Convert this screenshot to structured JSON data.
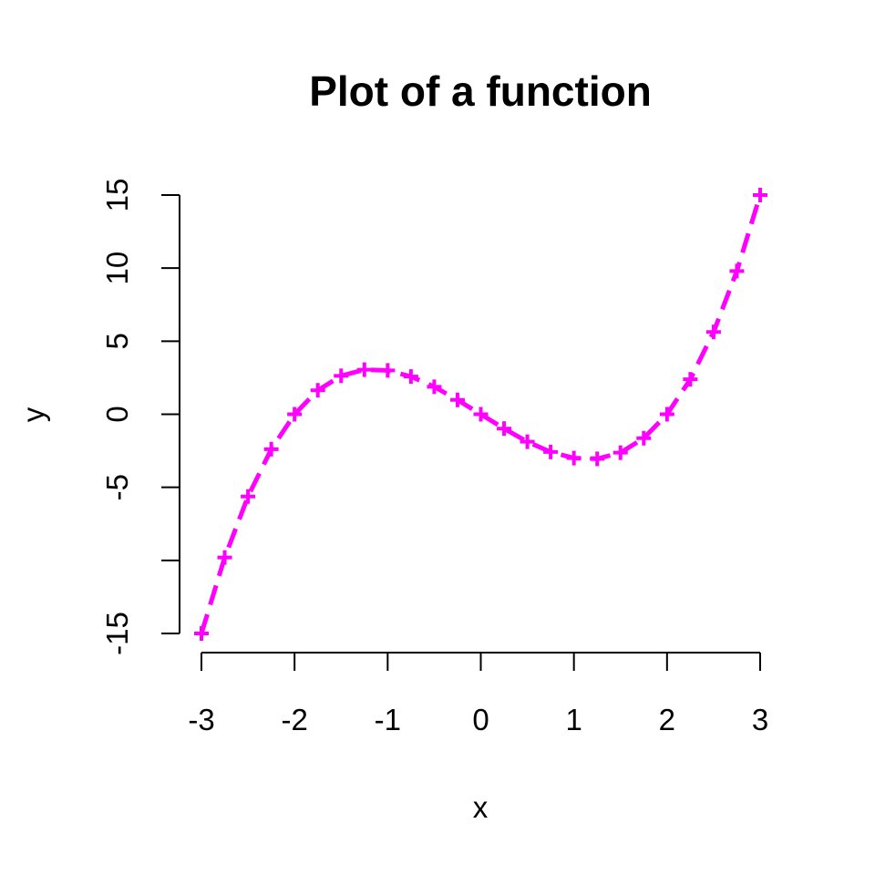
{
  "chart_data": {
    "type": "line",
    "title": "Plot of a function",
    "xlabel": "x",
    "ylabel": "y",
    "xlim": [
      -3,
      3
    ],
    "ylim": [
      -15,
      15
    ],
    "x_ticks": [
      -3,
      -2,
      -1,
      0,
      1,
      2,
      3
    ],
    "x_tick_labels": [
      "-3",
      "-2",
      "-1",
      "0",
      "1",
      "2",
      "3"
    ],
    "y_ticks": [
      -15,
      -10,
      -5,
      0,
      5,
      10,
      15
    ],
    "y_tick_labels": [
      "-15",
      "",
      "-5",
      "0",
      "5",
      "10",
      "15"
    ],
    "grid": false,
    "legend": "none",
    "series": [
      {
        "line_style": "dashed",
        "marker": "plus",
        "color": "#ff00ff",
        "points": [
          {
            "x": -3.0,
            "y": -15.0
          },
          {
            "x": -2.75,
            "y": -9.8
          },
          {
            "x": -2.5,
            "y": -5.63
          },
          {
            "x": -2.25,
            "y": -2.39
          },
          {
            "x": -2.0,
            "y": 0.0
          },
          {
            "x": -1.75,
            "y": 1.64
          },
          {
            "x": -1.5,
            "y": 2.63
          },
          {
            "x": -1.25,
            "y": 3.05
          },
          {
            "x": -1.0,
            "y": 3.0
          },
          {
            "x": -0.75,
            "y": 2.58
          },
          {
            "x": -0.5,
            "y": 1.88
          },
          {
            "x": -0.25,
            "y": 0.98
          },
          {
            "x": 0.0,
            "y": 0.0
          },
          {
            "x": 0.25,
            "y": -0.98
          },
          {
            "x": 0.5,
            "y": -1.88
          },
          {
            "x": 0.75,
            "y": -2.58
          },
          {
            "x": 1.0,
            "y": -3.0
          },
          {
            "x": 1.25,
            "y": -3.05
          },
          {
            "x": 1.5,
            "y": -2.63
          },
          {
            "x": 1.75,
            "y": -1.64
          },
          {
            "x": 2.0,
            "y": 0.0
          },
          {
            "x": 2.25,
            "y": 2.39
          },
          {
            "x": 2.5,
            "y": 5.63
          },
          {
            "x": 2.75,
            "y": 9.8
          },
          {
            "x": 3.0,
            "y": 15.0
          }
        ]
      }
    ]
  }
}
